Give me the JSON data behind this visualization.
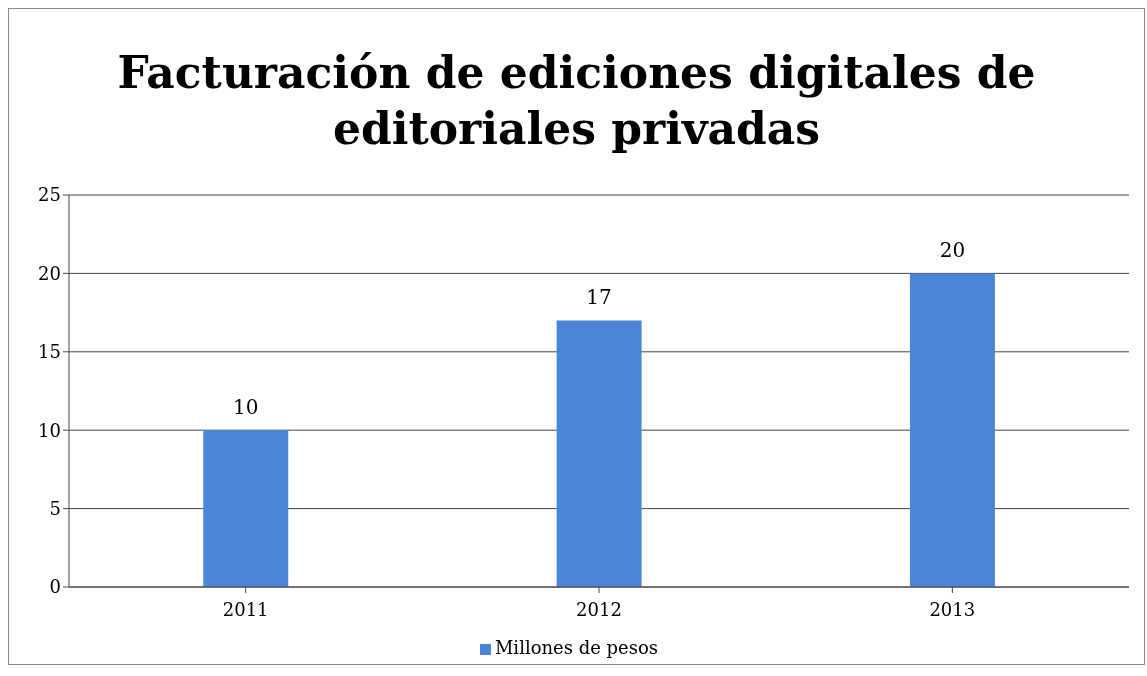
{
  "chart_data": {
    "type": "bar",
    "title": "Facturación de ediciones digitales de editoriales privadas",
    "categories": [
      "2011",
      "2012",
      "2013"
    ],
    "series": [
      {
        "name": "Millones de pesos",
        "color": "#4a86d8",
        "values": [
          10,
          17,
          20
        ]
      }
    ],
    "ylim": [
      0,
      25
    ],
    "yticks": [
      0,
      5,
      10,
      15,
      20,
      25
    ],
    "grid": "y",
    "legend": "bottom",
    "data_labels": true
  }
}
